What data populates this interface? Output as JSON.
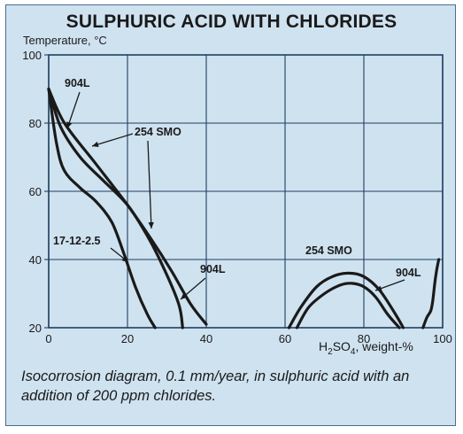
{
  "chart_data": {
    "type": "line",
    "title": "SULPHURIC ACID WITH CHLORIDES",
    "ylabel": "Temperature, °C",
    "xlabel_main": "H",
    "xlabel_sub1": "2",
    "xlabel_mid": "SO",
    "xlabel_sub2": "4",
    "xlabel_tail": ", weight-%",
    "xlim": [
      0,
      100
    ],
    "ylim": [
      20,
      100
    ],
    "xticks": [
      "0",
      "20",
      "40",
      "60",
      "80",
      "100"
    ],
    "yticks": [
      "20",
      "40",
      "60",
      "80",
      "100"
    ],
    "grid": true,
    "series": [
      {
        "name": "904L",
        "x": [
          0,
          4,
          12,
          20,
          26,
          31,
          36,
          40
        ],
        "y": [
          90,
          80,
          68,
          56,
          46,
          37,
          27,
          21
        ]
      },
      {
        "name": "254 SMO",
        "x": [
          0,
          3,
          8,
          14,
          20,
          25,
          29,
          33,
          34
        ],
        "y": [
          90,
          79,
          70,
          63,
          56,
          47,
          38,
          27,
          20
        ]
      },
      {
        "name": "17-12-2.5",
        "x": [
          0,
          2,
          4,
          8,
          12,
          16,
          19,
          22,
          25,
          27
        ],
        "y": [
          90,
          74,
          66,
          61,
          57,
          51,
          42,
          32,
          24,
          20
        ]
      },
      {
        "name": "254 SMO",
        "x": [
          61,
          64,
          68,
          72,
          76,
          80,
          84,
          88,
          90
        ],
        "y": [
          20,
          26,
          32,
          35,
          36,
          35,
          31,
          24,
          20
        ]
      },
      {
        "name": "904L",
        "x": [
          63,
          66,
          70,
          74,
          77,
          80,
          83,
          86,
          89
        ],
        "y": [
          20,
          26,
          30,
          32.5,
          33,
          32,
          29,
          24,
          20
        ]
      },
      {
        "name": "904L",
        "x": [
          95,
          96,
          97,
          97.5,
          98,
          98.5,
          99
        ],
        "y": [
          20,
          23,
          25,
          28,
          33,
          37,
          40
        ]
      }
    ],
    "annotations": [
      {
        "text": "904L"
      },
      {
        "text": "254 SMO"
      },
      {
        "text": "17-12-2.5"
      },
      {
        "text": "904L"
      },
      {
        "text": "254 SMO"
      },
      {
        "text": "904L"
      }
    ]
  },
  "caption": "Isocorrosion diagram, 0.1 mm/year, in sulphuric acid with an addition of 200 ppm chlorides.",
  "colors": {
    "background": "#cfe2f0",
    "line": "#1a1a1a",
    "grid": "#1f3f5f"
  }
}
